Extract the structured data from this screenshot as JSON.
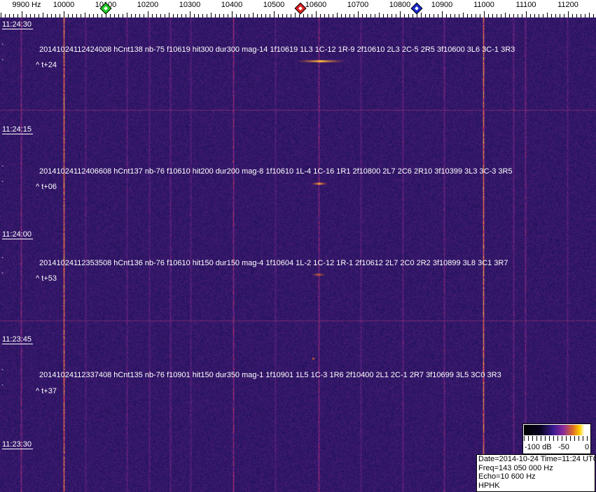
{
  "axis": {
    "unit_label": "9900 Hz",
    "freq_labels": [
      "10000",
      "10100",
      "10200",
      "10300",
      "10400",
      "10500",
      "10600",
      "10700",
      "10800",
      "10900",
      "11000",
      "11100",
      "11200"
    ],
    "markers": [
      {
        "name": "green-marker",
        "freq_hz": 10100,
        "color": "#22cc22"
      },
      {
        "name": "red-marker",
        "freq_hz": 10563,
        "color": "#dd2222"
      },
      {
        "name": "blue-marker",
        "freq_hz": 10840,
        "color": "#1a2acc"
      }
    ]
  },
  "time_labels": [
    "11:24:30",
    "11:24:15",
    "11:24:00",
    "11:23:45",
    "11:23:30"
  ],
  "detections": [
    {
      "text": "20141024112424008 hCnt138 nb-75 f10619 hit300 dur300 mag-14 1f10619 1L3 1C-12 1R-9 2f10610 2L3 2C-5 2R5 3f10600 3L6 3C-1 3R3",
      "offset": "^ t+24"
    },
    {
      "text": "20141024112406608 hCnt137 nb-76 f10610 hit200 dur200 mag-8 1f10610 1L-4 1C-16 1R1 2f10800 2L7 2C6 2R10 3f10399 3L3 3C-3 3R5",
      "offset": "^ t+06"
    },
    {
      "text": "20141024112353508 hCnt136 nb-76 f10610 hit150 dur150 mag-4 1f10604 1L-2 1C-12 1R-1 2f10612 2L7 2C0 2R2 3f10899 3L8 3C1 3R7",
      "offset": "^ t+53"
    },
    {
      "text": "20141024112337408 hCnt135 nb-76 f10901 hit150 dur350 mag-1 1f10901 1L5 1C-3 1R6 2f10400 2L1 2C-1 2R7 3f10699 3L5 3C0 3R3",
      "offset": "^ t+37"
    }
  ],
  "colorbar": {
    "labels": [
      "-100 dB",
      "-50",
      "0"
    ]
  },
  "info": {
    "line1": "Date=2014-10-24 Time=11:24 UTC",
    "line2": "Freq=143 050 000 Hz",
    "line3": "Echo=10 600 Hz",
    "line4": "HPHK"
  }
}
